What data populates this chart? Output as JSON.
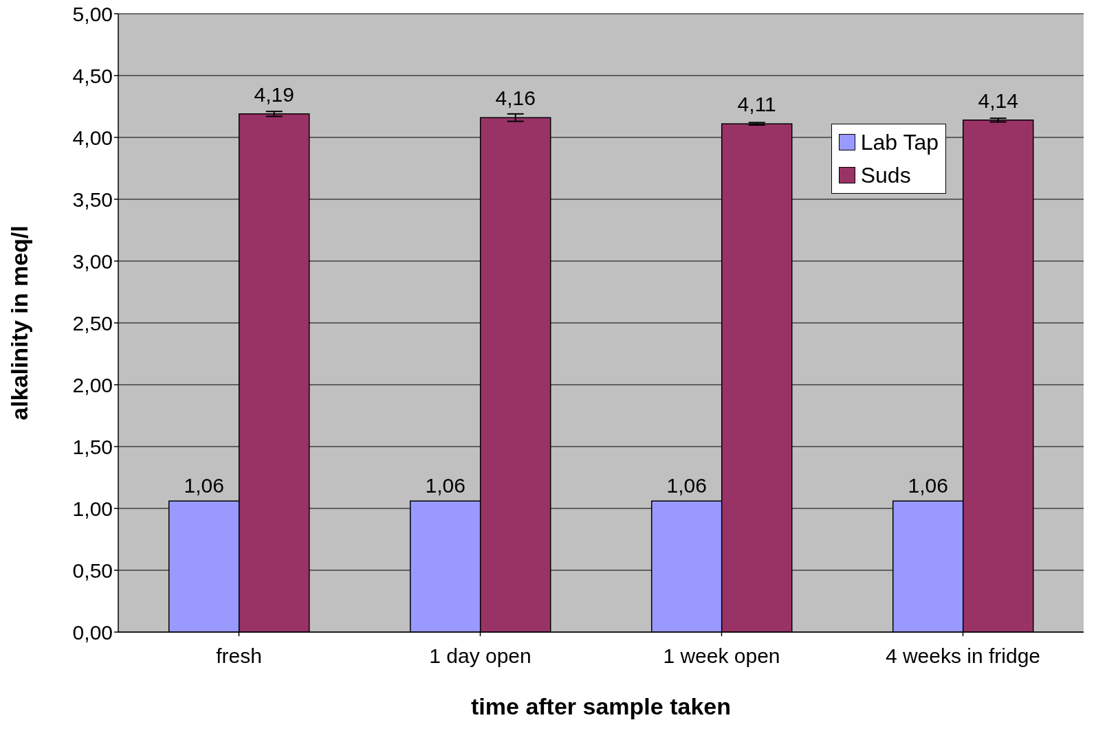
{
  "chart_data": {
    "type": "bar",
    "xlabel": "time after sample taken",
    "ylabel": "alkalinity in meq/l",
    "categories": [
      "fresh",
      "1 day open",
      "1 week open",
      "4 weeks in fridge"
    ],
    "series": [
      {
        "name": "Lab Tap",
        "color": "#9999ff",
        "values": [
          1.06,
          1.06,
          1.06,
          1.06
        ],
        "value_labels": [
          "1,06",
          "1,06",
          "1,06",
          "1,06"
        ]
      },
      {
        "name": "Suds",
        "color": "#993366",
        "values": [
          4.19,
          4.16,
          4.11,
          4.14
        ],
        "value_labels": [
          "4,19",
          "4,16",
          "4,11",
          "4,14"
        ],
        "errors": [
          0.02,
          0.03,
          0.01,
          0.015
        ]
      }
    ],
    "ylim": [
      0,
      5
    ],
    "yticks": [
      {
        "value": 0,
        "label": "0,00"
      },
      {
        "value": 0.5,
        "label": "0,50"
      },
      {
        "value": 1,
        "label": "1,00"
      },
      {
        "value": 1.5,
        "label": "1,50"
      },
      {
        "value": 2,
        "label": "2,00"
      },
      {
        "value": 2.5,
        "label": "2,50"
      },
      {
        "value": 3,
        "label": "3,00"
      },
      {
        "value": 3.5,
        "label": "3,50"
      },
      {
        "value": 4,
        "label": "4,00"
      },
      {
        "value": 4.5,
        "label": "4,50"
      },
      {
        "value": 5,
        "label": "5,00"
      }
    ],
    "grid": "y",
    "legend": "top right"
  }
}
